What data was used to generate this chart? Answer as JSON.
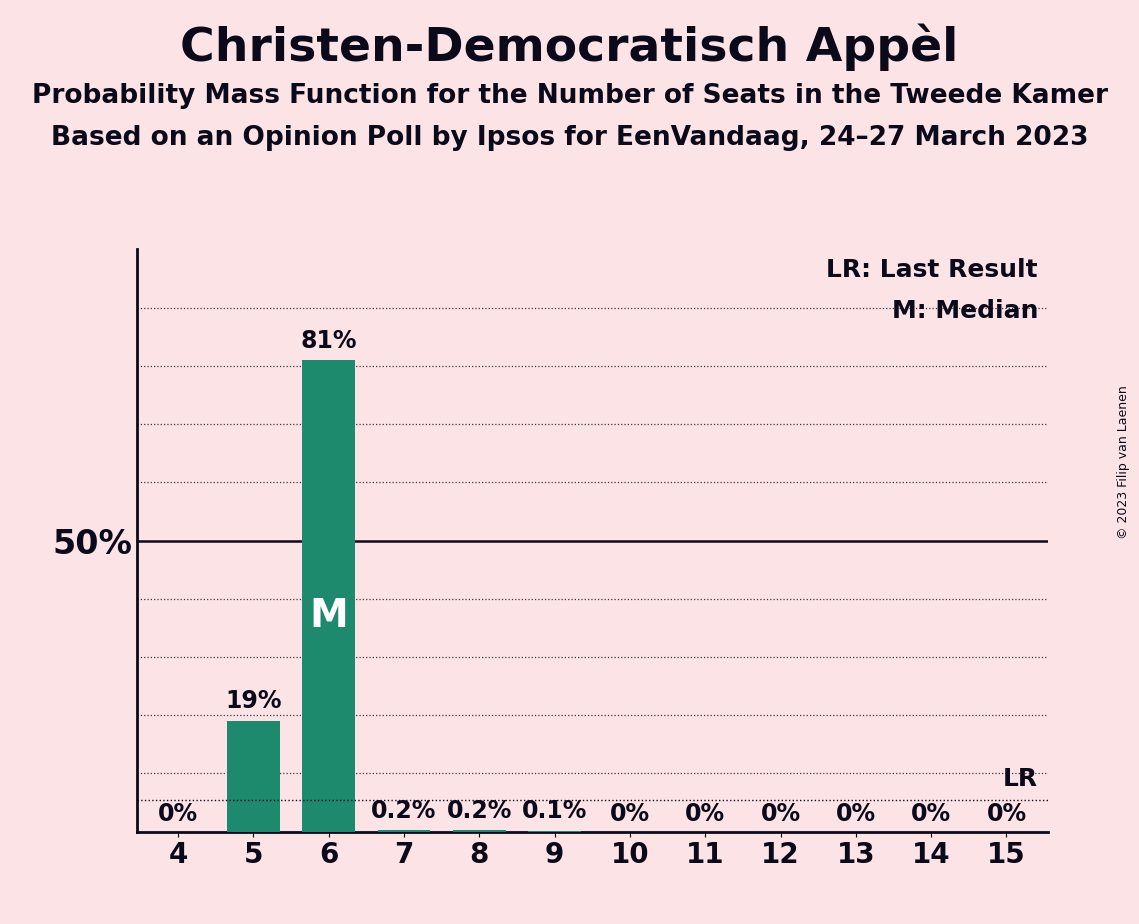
{
  "title": "Christen-Democratisch Appèl",
  "subtitle1": "Probability Mass Function for the Number of Seats in the Tweede Kamer",
  "subtitle2": "Based on an Opinion Poll by Ipsos for EenVandaag, 24–27 March 2023",
  "copyright": "© 2023 Filip van Laenen",
  "seats": [
    4,
    5,
    6,
    7,
    8,
    9,
    10,
    11,
    12,
    13,
    14,
    15
  ],
  "probabilities": [
    0.0,
    0.19,
    0.81,
    0.002,
    0.002,
    0.001,
    0.0,
    0.0,
    0.0,
    0.0,
    0.0,
    0.0
  ],
  "bar_labels": [
    "0%",
    "19%",
    "81%",
    "0.2%",
    "0.2%",
    "0.1%",
    "0%",
    "0%",
    "0%",
    "0%",
    "0%",
    "0%"
  ],
  "bar_color": "#1d8a6e",
  "background_color": "#fce4e6",
  "text_color": "#0a0a1a",
  "median_seat": 6,
  "last_result_seat": 15,
  "last_result_prob": 0.055,
  "ylim": [
    0,
    1.0
  ],
  "legend_lr": "LR: Last Result",
  "legend_m": "M: Median",
  "title_fontsize": 34,
  "subtitle_fontsize": 19,
  "bar_label_fontsize": 17,
  "tick_fontsize": 20,
  "legend_fontsize": 18,
  "ylabel_fontsize": 24,
  "median_label_fontsize": 28,
  "lr_label_fontsize": 18
}
